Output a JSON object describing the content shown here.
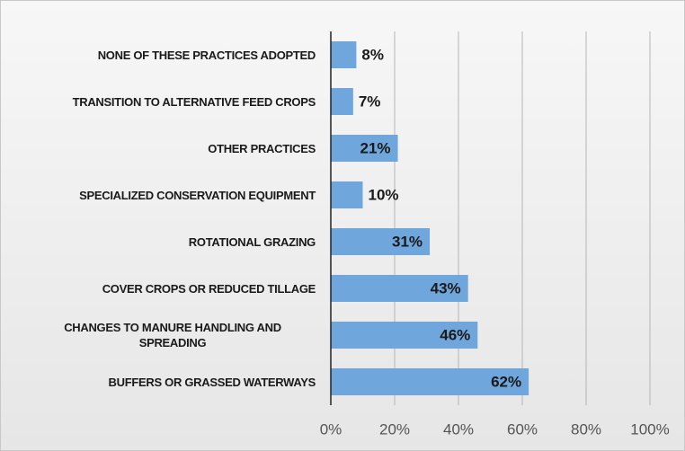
{
  "chart_data": {
    "type": "barh",
    "categories": [
      "NONE OF THESE PRACTICES ADOPTED",
      "TRANSITION TO ALTERNATIVE FEED CROPS",
      "OTHER PRACTICES",
      "SPECIALIZED CONSERVATION EQUIPMENT",
      "ROTATIONAL GRAZING",
      "COVER CROPS OR REDUCED TILLAGE",
      "CHANGES TO MANURE HANDLING AND SPREADING",
      "BUFFERS OR GRASSED WATERWAYS"
    ],
    "values": [
      8,
      7,
      21,
      10,
      31,
      43,
      46,
      62
    ],
    "value_labels": [
      "8%",
      "7%",
      "21%",
      "10%",
      "31%",
      "43%",
      "46%",
      "62%"
    ],
    "color": "#6fa6dc",
    "xlim": [
      0,
      100
    ],
    "xticks": [
      {
        "value": 0,
        "label": "0%"
      },
      {
        "value": 20,
        "label": "20%"
      },
      {
        "value": 40,
        "label": "40%"
      },
      {
        "value": 60,
        "label": "60%"
      },
      {
        "value": 80,
        "label": "80%"
      },
      {
        "value": 100,
        "label": "100%"
      }
    ],
    "grid": true
  }
}
